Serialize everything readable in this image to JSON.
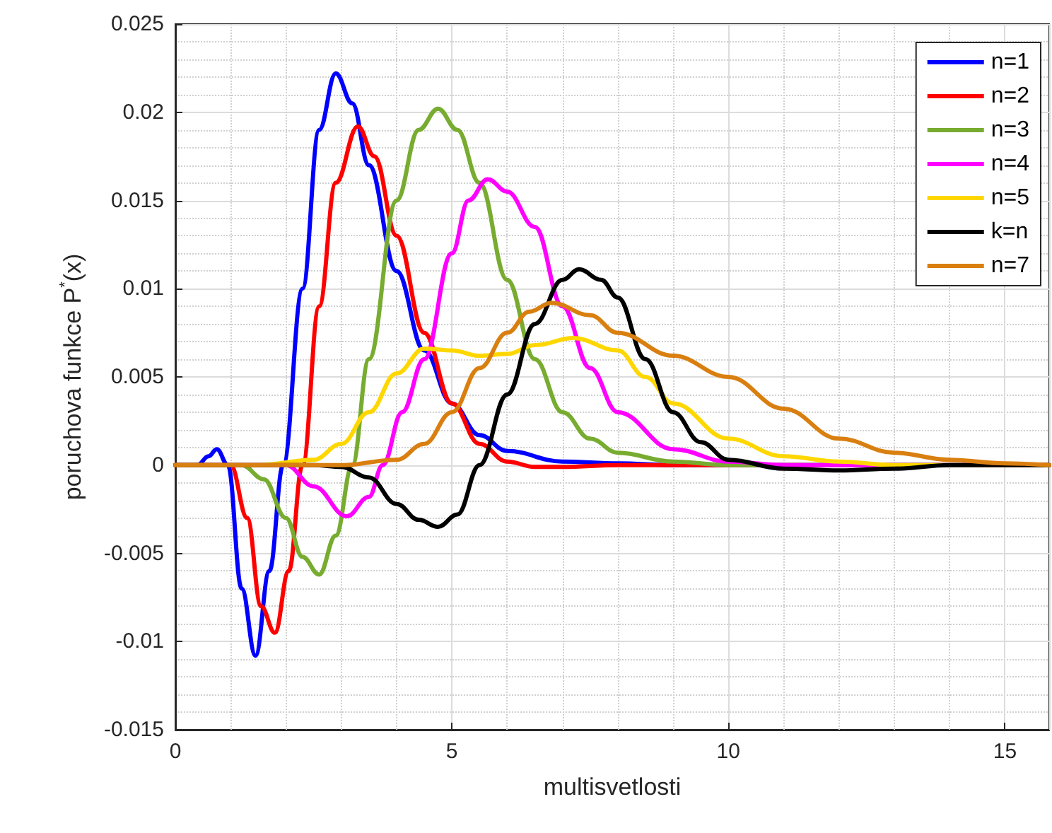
{
  "chart_data": {
    "type": "line",
    "xlabel": "multisvetlosti",
    "ylabel": "poruchova funkce P$^{*}$(x)",
    "xlim": [
      0,
      15.8
    ],
    "ylim": [
      -0.015,
      0.025
    ],
    "xticks": [
      0,
      5,
      10,
      15
    ],
    "yticks": [
      -0.015,
      -0.01,
      -0.005,
      0,
      0.005,
      0.01,
      0.015,
      0.02,
      0.025
    ],
    "grid": true,
    "legend": "top right",
    "marker": "none",
    "line_style": "solid",
    "series": [
      {
        "name": "n=1",
        "color": "#0000ff",
        "x": [
          0,
          0.4,
          0.6,
          0.75,
          0.95,
          1.2,
          1.45,
          1.7,
          1.95,
          2.3,
          2.6,
          2.9,
          3.2,
          3.5,
          4,
          4.5,
          5,
          5.5,
          6,
          7,
          8,
          9,
          15.8
        ],
        "values": [
          0,
          0,
          0.0005,
          0.0009,
          0,
          -0.007,
          -0.0108,
          -0.006,
          0,
          0.01,
          0.019,
          0.0222,
          0.0205,
          0.017,
          0.011,
          0.0065,
          0.0035,
          0.0017,
          0.0008,
          0.0002,
          0.0001,
          0,
          0
        ]
      },
      {
        "name": "n=2",
        "color": "#ff0000",
        "x": [
          0,
          1,
          1.3,
          1.55,
          1.8,
          2.05,
          2.3,
          2.6,
          2.9,
          3.3,
          3.6,
          4,
          4.5,
          5,
          5.5,
          6,
          6.5,
          7,
          8,
          15.8
        ],
        "values": [
          0,
          0,
          -0.003,
          -0.008,
          -0.0095,
          -0.006,
          0,
          0.009,
          0.016,
          0.0192,
          0.0175,
          0.013,
          0.0075,
          0.0035,
          0.0012,
          0.0002,
          -0.0001,
          -0.0001,
          0,
          0
        ]
      },
      {
        "name": "n=3",
        "color": "#77ac30",
        "x": [
          0,
          1.2,
          1.6,
          2,
          2.3,
          2.6,
          2.9,
          3.2,
          3.5,
          4,
          4.4,
          4.75,
          5.1,
          5.5,
          6,
          6.5,
          7,
          7.5,
          8,
          9,
          10,
          15.8
        ],
        "values": [
          0,
          0,
          -0.0008,
          -0.003,
          -0.0052,
          -0.0062,
          -0.004,
          0,
          0.006,
          0.015,
          0.019,
          0.0202,
          0.019,
          0.016,
          0.0105,
          0.006,
          0.003,
          0.0015,
          0.0007,
          0.0002,
          0,
          0
        ]
      },
      {
        "name": "n=4",
        "color": "#ff00ff",
        "x": [
          0,
          2,
          2.5,
          3.1,
          3.5,
          3.75,
          4.1,
          4.5,
          5,
          5.3,
          5.65,
          6,
          6.5,
          7,
          7.5,
          8,
          9,
          10,
          11,
          15.8
        ],
        "values": [
          0,
          0,
          -0.0012,
          -0.0029,
          -0.0018,
          0,
          0.003,
          0.006,
          0.012,
          0.015,
          0.0162,
          0.0155,
          0.0135,
          0.009,
          0.0055,
          0.003,
          0.0009,
          0.0002,
          0,
          0
        ]
      },
      {
        "name": "n=5",
        "color": "#ffd700",
        "x": [
          0,
          1.5,
          2.5,
          3,
          3.5,
          4,
          4.5,
          5,
          5.5,
          6,
          6.5,
          7.2,
          8,
          8.5,
          9,
          10,
          11,
          12,
          13,
          15.8
        ],
        "values": [
          0,
          0,
          0.0003,
          0.0012,
          0.003,
          0.0052,
          0.0066,
          0.0065,
          0.0062,
          0.0063,
          0.0068,
          0.0072,
          0.0065,
          0.005,
          0.0035,
          0.0015,
          0.0005,
          0.0002,
          0,
          0
        ]
      },
      {
        "name": "k=n",
        "color": "#000000",
        "x": [
          0,
          2.5,
          3,
          3.5,
          4,
          4.4,
          4.75,
          5.1,
          5.5,
          6,
          6.5,
          7,
          7.3,
          7.7,
          8,
          8.5,
          9,
          9.5,
          10,
          11,
          12,
          13,
          14,
          15.8
        ],
        "values": [
          0,
          0,
          -0.0001,
          -0.0007,
          -0.0022,
          -0.0031,
          -0.0035,
          -0.0028,
          0,
          0.004,
          0.008,
          0.0105,
          0.0111,
          0.0105,
          0.0095,
          0.006,
          0.003,
          0.0013,
          0.0003,
          -0.0002,
          -0.0003,
          -0.0002,
          0,
          0
        ]
      },
      {
        "name": "n=7",
        "color": "#d97f10",
        "x": [
          0,
          3,
          4,
          4.5,
          5,
          5.5,
          6,
          6.4,
          6.8,
          7.5,
          8,
          9,
          10,
          11,
          12,
          13,
          14,
          15,
          15.8
        ],
        "values": [
          0,
          0,
          0.0003,
          0.0012,
          0.003,
          0.0055,
          0.0075,
          0.0087,
          0.0092,
          0.0085,
          0.0075,
          0.0062,
          0.005,
          0.0032,
          0.0015,
          0.0007,
          0.0003,
          0.0001,
          0
        ]
      }
    ]
  }
}
